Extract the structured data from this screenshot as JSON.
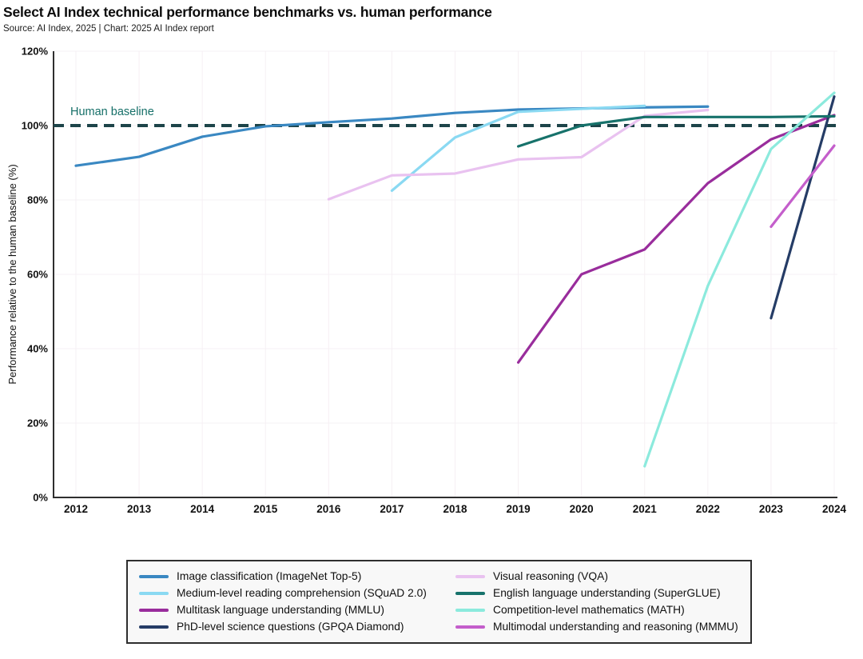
{
  "header": {
    "title": "Select AI Index technical performance benchmarks vs. human performance",
    "subtitle": "Source: AI Index, 2025 | Chart: 2025 AI Index report"
  },
  "chart_data": {
    "type": "line",
    "title": "Select AI Index technical performance benchmarks vs. human performance",
    "xlabel": "",
    "ylabel": "Performance relative to the human baseline (%)",
    "ylim": [
      0,
      120
    ],
    "yticks": [
      0,
      20,
      40,
      60,
      80,
      100,
      120
    ],
    "ytick_suffix": "%",
    "x_years": [
      2012,
      2013,
      2014,
      2015,
      2016,
      2017,
      2018,
      2019,
      2020,
      2021,
      2022,
      2023,
      2024
    ],
    "grid": "on",
    "grid_color": "#f6f0f4",
    "axis_color": "#2f2f2f",
    "baseline": {
      "value": 100,
      "label": "Human baseline",
      "color": "#1d4449",
      "label_color": "#156f68"
    },
    "legend": {
      "position": "bottom",
      "columns": [
        [
          "imagenet",
          "squad",
          "mmlu",
          "gpqa"
        ],
        [
          "vqa",
          "superglue",
          "math",
          "mmmu"
        ]
      ]
    },
    "series": [
      {
        "id": "imagenet",
        "name": "Image classification (ImageNet Top-5)",
        "color": "#3a88c2",
        "years": [
          2012,
          2013,
          2014,
          2015,
          2016,
          2017,
          2018,
          2019,
          2020,
          2021,
          2022
        ],
        "values": [
          89.2,
          91.6,
          97.0,
          99.8,
          100.9,
          101.9,
          103.4,
          104.3,
          104.6,
          104.9,
          105.1
        ]
      },
      {
        "id": "squad",
        "name": "Medium-level reading comprehension (SQuAD 2.0)",
        "color": "#8ad9f2",
        "years": [
          2017,
          2018,
          2019,
          2020,
          2021
        ],
        "values": [
          82.5,
          96.8,
          103.7,
          104.5,
          105.3
        ]
      },
      {
        "id": "mmlu",
        "name": "Multitask language understanding (MMLU)",
        "color": "#992d9c",
        "years": [
          2019,
          2020,
          2021,
          2022,
          2023,
          2024
        ],
        "values": [
          36.3,
          60.0,
          66.7,
          84.5,
          96.3,
          102.8
        ]
      },
      {
        "id": "gpqa",
        "name": "PhD-level science questions (GPQA Diamond)",
        "color": "#253c66",
        "years": [
          2023,
          2024
        ],
        "values": [
          48.2,
          107.8
        ]
      },
      {
        "id": "vqa",
        "name": "Visual reasoning (VQA)",
        "color": "#e9c2f0",
        "years": [
          2016,
          2017,
          2018,
          2019,
          2020,
          2021,
          2022
        ],
        "values": [
          80.2,
          86.6,
          87.1,
          90.9,
          91.5,
          102.6,
          104.2
        ]
      },
      {
        "id": "superglue",
        "name": "English language understanding (SuperGLUE)",
        "color": "#17726b",
        "years": [
          2019,
          2020,
          2021,
          2022,
          2023,
          2024
        ],
        "values": [
          94.4,
          100.0,
          102.3,
          102.3,
          102.3,
          102.5
        ]
      },
      {
        "id": "math",
        "name": "Competition-level mathematics (MATH)",
        "color": "#8ceadd",
        "years": [
          2021,
          2022,
          2023,
          2024
        ],
        "values": [
          8.4,
          56.9,
          93.7,
          108.8
        ]
      },
      {
        "id": "mmmu",
        "name": "Multimodal understanding and reasoning (MMMU)",
        "color": "#c45ecb",
        "years": [
          2023,
          2024
        ],
        "values": [
          72.8,
          94.6
        ]
      }
    ]
  }
}
